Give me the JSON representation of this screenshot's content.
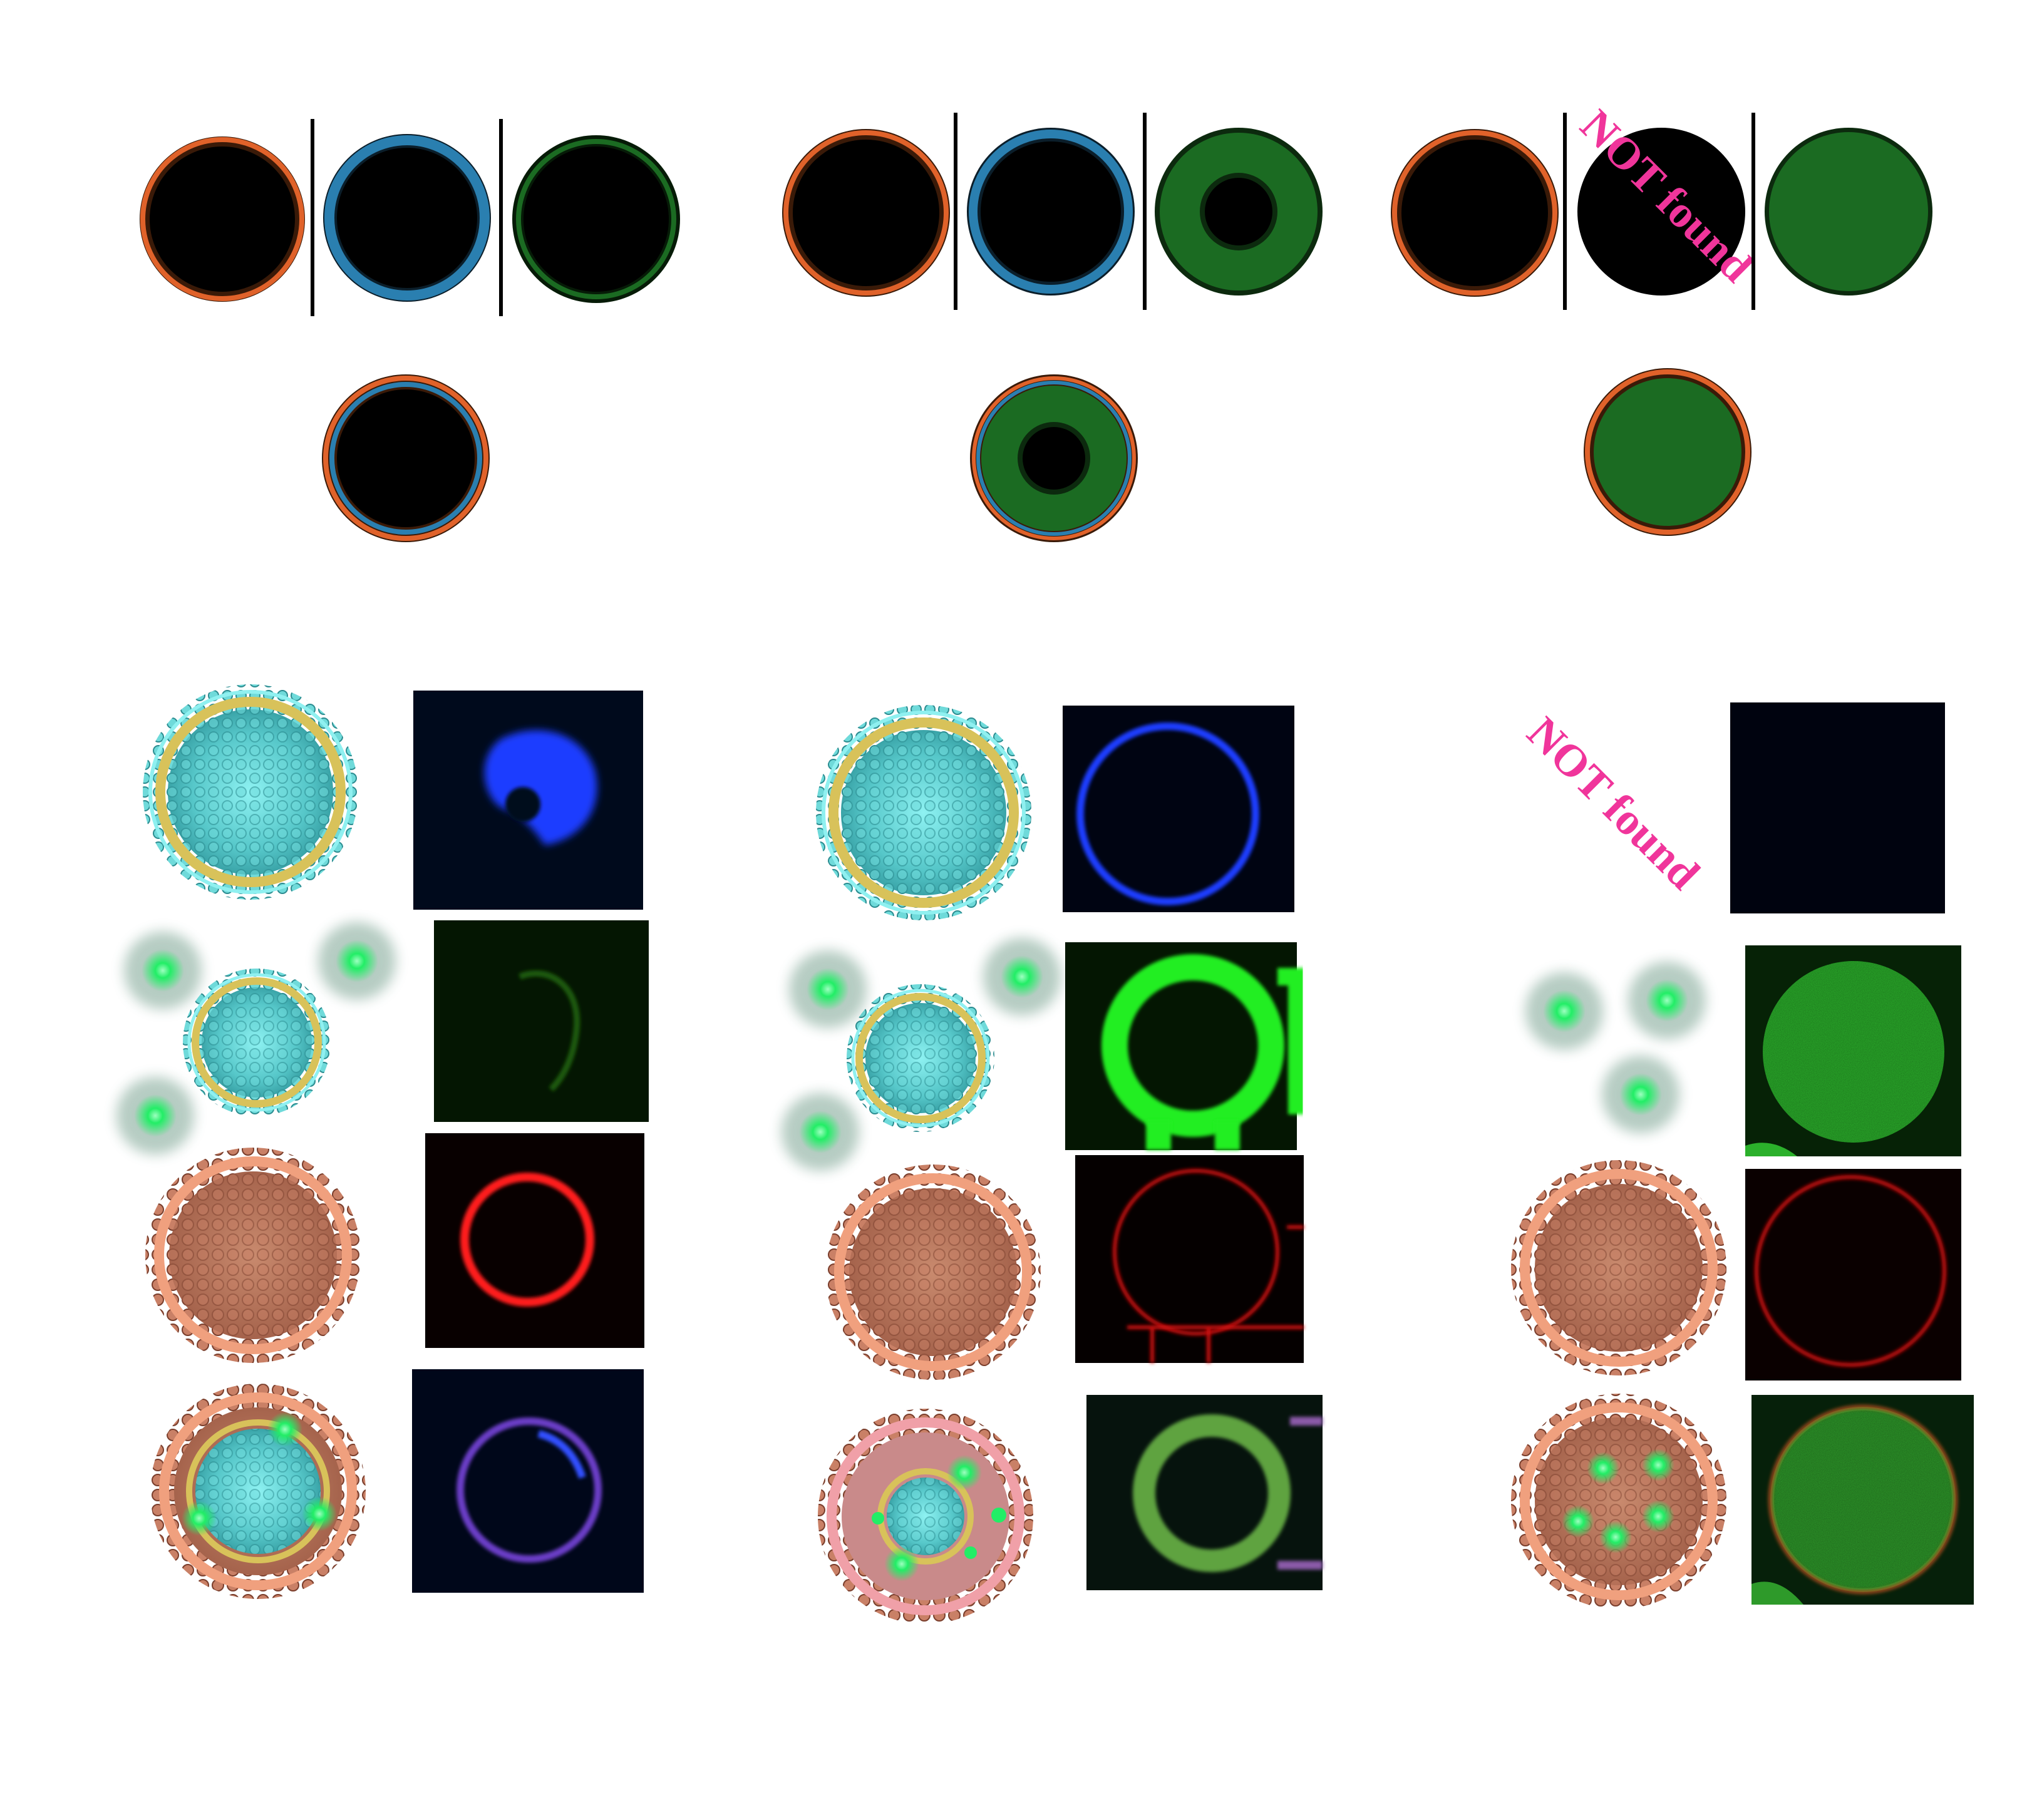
{
  "labels": {
    "not_found_top": "NOT found",
    "not_found_bottom": "NOT found"
  },
  "colors": {
    "background": "#ffffff",
    "orange_membrane": "#e0622a",
    "blue_membrane": "#2a7fb0",
    "green_fill": "#1b6b22",
    "green_fluorescence": "#22ee22",
    "blue_fluorescence": "#1a3cff",
    "red_fluorescence": "#ff1a1a",
    "label_pink": "#f0359b",
    "cyan_lipid": "#5fe8e8",
    "yellow_ring": "#d8c25a",
    "salmon_lipid": "#f0a07e"
  }
}
